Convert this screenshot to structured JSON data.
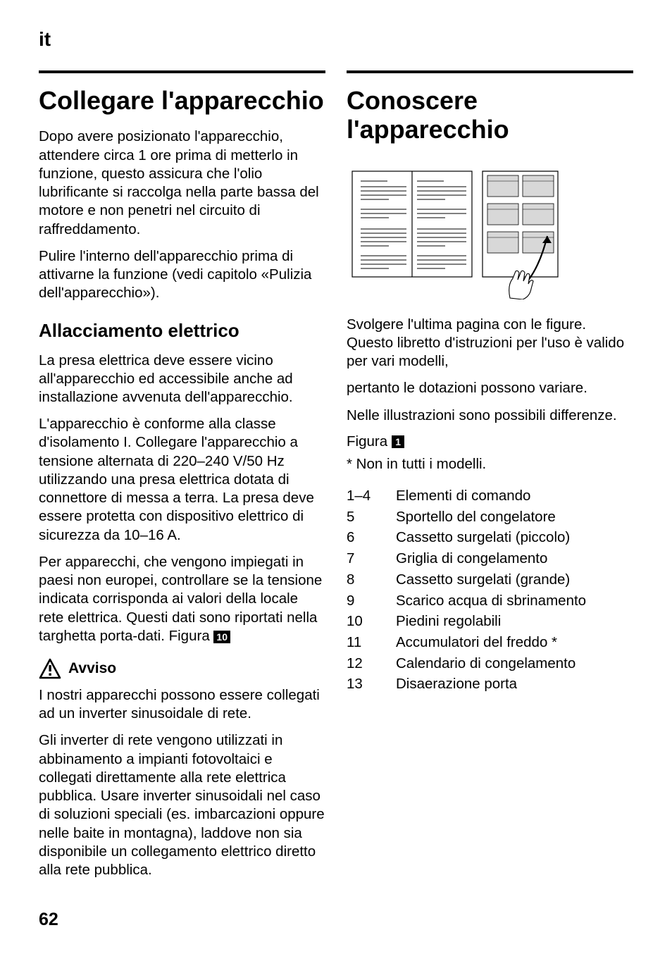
{
  "language_header": "it",
  "page_number": "62",
  "left": {
    "title": "Collegare l'apparecchio",
    "para1": "Dopo avere posizionato l'apparecchio, attendere circa 1 ore prima di metterlo in funzione, questo assicura che l'olio lubrificante si raccolga nella parte bassa del motore e non penetri nel circuito di raffreddamento.",
    "para2": "Pulire l'interno dell'apparecchio prima di attivarne la funzione (vedi capitolo «Pulizia dell'apparecchio»).",
    "subheading": "Allacciamento elettrico",
    "para3": "La presa elettrica deve essere vicino all'apparecchio ed accessibile anche ad installazione avvenuta dell'apparecchio.",
    "para4": "L'apparecchio è conforme alla classe d'isolamento I. Collegare l'apparecchio a tensione alternata di 220–240 V/50 Hz utilizzando una presa elettrica dotata di connettore di messa a terra. La presa deve essere protetta con dispositivo elettrico di sicurezza da 10–16 A.",
    "para5": "Per apparecchi, che vengono impiegati in paesi non europei, controllare se la tensione indicata corrisponda ai valori della locale rete elettrica. Questi dati sono riportati nella targhetta porta-dati. Figura ",
    "figura5_badge": "10",
    "warning_label": "Avviso",
    "para6": "I nostri apparecchi possono essere collegati ad un inverter sinusoidale di rete.",
    "para7": "Gli inverter di rete vengono utilizzati in abbinamento a impianti fotovoltaici e collegati direttamente alla rete elettrica pubblica. Usare inverter sinusoidali nel caso di soluzioni speciali (es. imbarcazioni oppure nelle baite in montagna), laddove non sia disponibile un collegamento elettrico diretto alla rete pubblica."
  },
  "right": {
    "title": "Conoscere l'apparecchio",
    "para1": "Svolgere l'ultima pagina con le figure. Questo libretto d'istruzioni per l'uso è valido per vari modelli,",
    "para2": "pertanto le dotazioni possono variare.",
    "para3": "Nelle illustrazioni sono possibili differenze.",
    "figura_label": "Figura ",
    "figura_badge": "1",
    "footnote": "* Non in tutti i modelli.",
    "legend": [
      {
        "num": "1–4",
        "text": "Elementi di comando"
      },
      {
        "num": "5",
        "text": "Sportello del congelatore"
      },
      {
        "num": "6",
        "text": "Cassetto surgelati (piccolo)"
      },
      {
        "num": "7",
        "text": "Griglia di congelamento"
      },
      {
        "num": "8",
        "text": "Cassetto surgelati (grande)"
      },
      {
        "num": "9",
        "text": "Scarico acqua di sbrinamento"
      },
      {
        "num": "10",
        "text": "Piedini regolabili"
      },
      {
        "num": "11",
        "text": "Accumulatori del freddo *"
      },
      {
        "num": "12",
        "text": "Calendario di congelamento"
      },
      {
        "num": "13",
        "text": "Disaerazione porta"
      }
    ]
  }
}
